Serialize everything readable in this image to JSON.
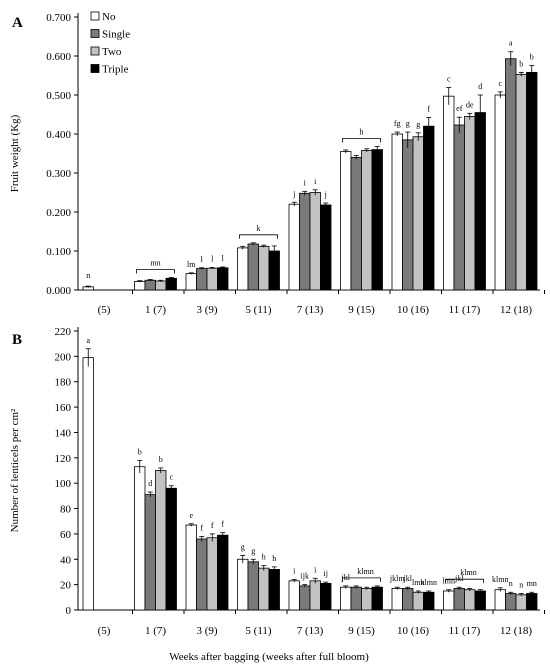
{
  "chart_data": [
    {
      "type": "bar",
      "panel_label": "A",
      "ylabel": "Fruit weight (Kg)",
      "ylim": [
        0,
        0.7
      ],
      "yticks": [
        "0.000",
        "0.100",
        "0.200",
        "0.300",
        "0.400",
        "0.500",
        "0.600",
        "0.700"
      ],
      "categories": [
        "(5)",
        "1 (7)",
        "3 (9)",
        "5 (11)",
        "7 (13)",
        "9 (15)",
        "10 (16)",
        "11 (17)",
        "12 (18)"
      ],
      "legend": {
        "placement": "top-left"
      },
      "series": [
        {
          "name": "No",
          "color": "#ffffff",
          "values": [
            0.008,
            0.022,
            0.042,
            0.108,
            0.22,
            0.355,
            0.4,
            0.497,
            0.5
          ],
          "errors": [
            0.002,
            0.002,
            0.002,
            0.004,
            0.005,
            0.004,
            0.005,
            0.022,
            0.008
          ]
        },
        {
          "name": "Single",
          "color": "#7a7a7a",
          "values": [
            null,
            0.025,
            0.055,
            0.118,
            0.248,
            0.34,
            0.385,
            0.423,
            0.593
          ],
          "errors": [
            null,
            0.002,
            0.002,
            0.003,
            0.005,
            0.005,
            0.02,
            0.02,
            0.018
          ]
        },
        {
          "name": "Two",
          "color": "#c2c2c2",
          "values": [
            null,
            0.023,
            0.056,
            0.112,
            0.25,
            0.358,
            0.393,
            0.445,
            0.553
          ],
          "errors": [
            null,
            0.002,
            0.002,
            0.003,
            0.007,
            0.004,
            0.01,
            0.008,
            0.005
          ]
        },
        {
          "name": "Triple",
          "color": "#000000",
          "values": [
            null,
            0.03,
            0.057,
            0.1,
            0.218,
            0.36,
            0.42,
            0.455,
            0.558
          ],
          "errors": [
            null,
            0.002,
            0.002,
            0.013,
            0.005,
            0.008,
            0.022,
            0.045,
            0.018
          ]
        }
      ],
      "annotations": [
        {
          "group": 0,
          "text": "n"
        },
        {
          "group": 1,
          "text": "mn",
          "bracket": true
        },
        {
          "group": 2,
          "labels": [
            "lm",
            "l",
            "l",
            "l"
          ]
        },
        {
          "group": 3,
          "text": "k",
          "bracket": true
        },
        {
          "group": 4,
          "labels": [
            "j",
            "i",
            "i",
            "j"
          ]
        },
        {
          "group": 5,
          "text": "h",
          "bracket": true
        },
        {
          "group": 6,
          "labels": [
            "fg",
            "g",
            "g",
            "f"
          ]
        },
        {
          "group": 7,
          "labels": [
            "c",
            "ef",
            "de",
            "d"
          ]
        },
        {
          "group": 8,
          "labels": [
            "c",
            "a",
            "b",
            "b"
          ]
        }
      ]
    },
    {
      "type": "bar",
      "panel_label": "B",
      "ylabel": "Number of lenticels per cm²",
      "xlabel": "Weeks after bagging (weeks after full bloom)",
      "ylim": [
        0,
        220
      ],
      "yticks": [
        "0",
        "20",
        "40",
        "60",
        "80",
        "100",
        "120",
        "140",
        "160",
        "180",
        "200",
        "220"
      ],
      "categories": [
        "(5)",
        "1 (7)",
        "3 (9)",
        "5 (11)",
        "7 (13)",
        "9 (15)",
        "10 (16)",
        "11 (17)",
        "12 (18)"
      ],
      "series": [
        {
          "name": "No",
          "color": "#ffffff",
          "values": [
            199,
            113,
            67,
            40,
            23,
            18,
            17,
            15,
            16
          ],
          "errors": [
            7,
            5,
            1,
            3,
            1,
            1,
            1,
            1,
            1.5
          ]
        },
        {
          "name": "Single",
          "color": "#7a7a7a",
          "values": [
            null,
            91,
            56,
            38,
            19,
            18,
            17,
            17,
            13
          ],
          "errors": [
            null,
            2,
            2,
            2,
            1,
            1,
            1,
            1,
            1
          ]
        },
        {
          "name": "Two",
          "color": "#c2c2c2",
          "values": [
            null,
            110,
            57,
            33,
            23,
            17,
            14,
            16,
            12
          ],
          "errors": [
            null,
            2,
            3,
            2,
            2,
            1,
            1,
            1,
            1
          ]
        },
        {
          "name": "Triple",
          "color": "#000000",
          "values": [
            null,
            96,
            59,
            32,
            21,
            18,
            14,
            15,
            13
          ],
          "errors": [
            null,
            2,
            2,
            2,
            1,
            1,
            1,
            1,
            1
          ]
        }
      ],
      "annotations": [
        {
          "group": 0,
          "labels": [
            "a"
          ]
        },
        {
          "group": 1,
          "labels": [
            "b",
            "d",
            "b",
            "c"
          ]
        },
        {
          "group": 2,
          "labels": [
            "e",
            "f",
            "f",
            "f"
          ]
        },
        {
          "group": 3,
          "labels": [
            "g",
            "g",
            "h",
            "h"
          ]
        },
        {
          "group": 4,
          "labels": [
            "i",
            "ijk",
            "i",
            "ij"
          ]
        },
        {
          "group": 5,
          "labels": [
            "jkl",
            "",
            "",
            ""
          ],
          "bracket_label": "klmn",
          "bracket": true
        },
        {
          "group": 6,
          "labels": [
            "jklm",
            "jkl",
            "lmn",
            "klmn"
          ]
        },
        {
          "group": 7,
          "labels": [
            "lmn",
            "jkl",
            "",
            ""
          ],
          "bracket_label": "klmn",
          "bracket": true
        },
        {
          "group": 8,
          "labels": [
            "klmn",
            "n",
            "n",
            "mn"
          ]
        }
      ]
    }
  ]
}
